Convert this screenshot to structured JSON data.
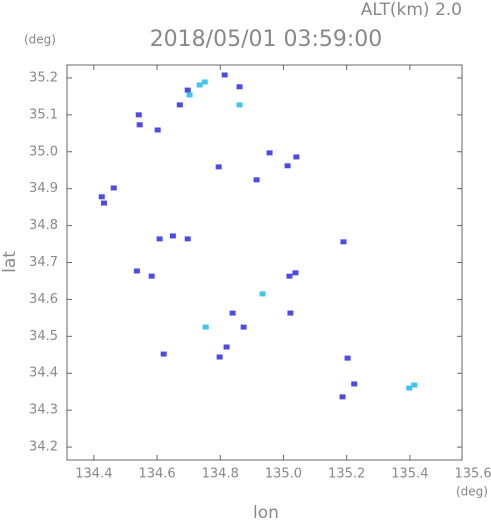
{
  "chart_data": {
    "type": "scatter",
    "title": "2018/05/01 03:59:00",
    "subtitle": "ALT(km) 2.0",
    "x_label": "lon",
    "y_label": "lat",
    "x_unit": "(deg)",
    "y_unit": "(deg)",
    "xlim": [
      134.315,
      135.565
    ],
    "ylim": [
      34.165,
      35.235
    ],
    "xticks": [
      134.4,
      134.6,
      134.8,
      {
        "value": 135,
        "label": "135.0"
      },
      135.2,
      135.4,
      135.6
    ],
    "yticks": [
      34.2,
      34.3,
      34.4,
      34.5,
      34.6,
      34.7,
      34.8,
      34.9,
      {
        "value": 35,
        "label": "35.0"
      },
      35.1,
      35.2
    ],
    "series": [
      {
        "color": "#4b4be6",
        "x": [
          134.672,
          134.697,
          134.542,
          134.545,
          134.814,
          134.861,
          134.602,
          134.956,
          135.013,
          135.041,
          134.795,
          134.915,
          134.425,
          134.432,
          134.463,
          134.608,
          134.65,
          134.697,
          135.19,
          134.536,
          134.583,
          135.019,
          135.038,
          135.022,
          134.839,
          134.874,
          134.621,
          134.82,
          134.798,
          135.203,
          135.224,
          135.187
        ],
        "values": [
          35.127,
          35.167,
          35.1,
          35.073,
          35.208,
          35.176,
          35.059,
          34.997,
          34.962,
          34.986,
          34.959,
          34.924,
          34.878,
          34.861,
          34.902,
          34.764,
          34.772,
          34.764,
          34.756,
          34.677,
          34.663,
          34.663,
          34.672,
          34.563,
          34.563,
          34.525,
          34.452,
          34.471,
          34.444,
          34.441,
          34.371,
          34.336
        ]
      },
      {
        "color": "#3fc4f0",
        "x": [
          134.703,
          134.735,
          134.751,
          134.861,
          134.934,
          134.754,
          135.398,
          135.414
        ],
        "values": [
          35.154,
          35.181,
          35.189,
          35.127,
          34.615,
          34.525,
          34.36,
          34.368
        ]
      }
    ]
  }
}
